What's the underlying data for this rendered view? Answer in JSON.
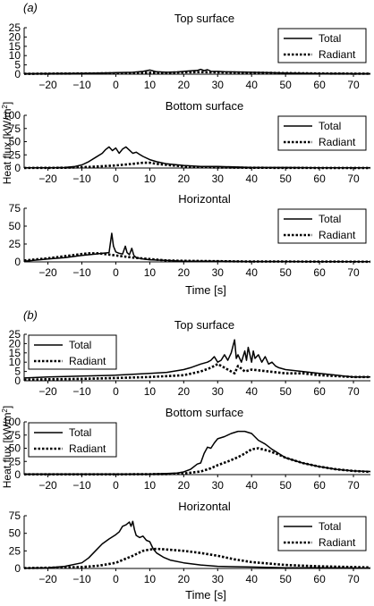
{
  "figure": {
    "panels": [
      {
        "label": "(a)",
        "ylabel": "Heat flux [kW/m",
        "ylabel_sup": "2",
        "ylabel_close": "]",
        "xlabel": "Time [s]"
      },
      {
        "label": "(b)",
        "ylabel": "Heat flux [kW/m",
        "ylabel_sup": "2",
        "ylabel_close": "]",
        "xlabel": "Time [s]"
      }
    ]
  },
  "chart_data": [
    {
      "type": "line",
      "panel": "(a)",
      "title": "Top surface",
      "xlim": [
        -27,
        75
      ],
      "ylim": [
        0,
        25
      ],
      "xticks": [
        -20,
        -10,
        0,
        10,
        20,
        30,
        40,
        50,
        60,
        70
      ],
      "yticks": [
        0,
        5,
        10,
        15,
        20,
        25
      ],
      "grid": false,
      "legend": "top-right",
      "series": [
        {
          "name": "Total",
          "style": "solid",
          "x": [
            -27,
            -20,
            -10,
            -5,
            0,
            5,
            8,
            10,
            12,
            15,
            18,
            20,
            22,
            24,
            25,
            26,
            27,
            28,
            30,
            32,
            35,
            40,
            45,
            50,
            55,
            60,
            65,
            70,
            75
          ],
          "y": [
            0.3,
            0.4,
            0.5,
            0.6,
            0.8,
            1.0,
            1.5,
            2.2,
            1.3,
            1.0,
            1.2,
            1.5,
            1.8,
            2.0,
            2.6,
            1.9,
            2.4,
            1.6,
            1.5,
            1.3,
            1.2,
            1.0,
            0.8,
            0.6,
            0.5,
            0.4,
            0.4,
            0.3,
            0.3
          ]
        },
        {
          "name": "Radiant",
          "style": "dotted",
          "x": [
            -27,
            -20,
            -10,
            0,
            5,
            10,
            15,
            20,
            25,
            30,
            35,
            40,
            50,
            60,
            70,
            75
          ],
          "y": [
            0.2,
            0.3,
            0.4,
            0.5,
            0.6,
            0.8,
            0.8,
            1.0,
            1.1,
            1.0,
            0.9,
            0.8,
            0.6,
            0.4,
            0.3,
            0.3
          ]
        }
      ]
    },
    {
      "type": "line",
      "panel": "(a)",
      "title": "Bottom surface",
      "xlim": [
        -27,
        75
      ],
      "ylim": [
        0,
        100
      ],
      "xticks": [
        -20,
        -10,
        0,
        10,
        20,
        30,
        40,
        50,
        60,
        70
      ],
      "yticks": [
        0,
        25,
        50,
        75,
        100
      ],
      "grid": false,
      "legend": "top-right",
      "series": [
        {
          "name": "Total",
          "style": "solid",
          "x": [
            -27,
            -20,
            -15,
            -12,
            -10,
            -8,
            -6,
            -4,
            -3,
            -2,
            -1,
            0,
            1,
            2,
            3,
            4,
            5,
            6,
            7,
            8,
            10,
            12,
            15,
            20,
            25,
            30,
            35,
            40,
            50,
            60,
            70,
            75
          ],
          "y": [
            0.5,
            0.5,
            1,
            3,
            6,
            12,
            20,
            28,
            35,
            40,
            33,
            38,
            28,
            36,
            40,
            34,
            28,
            30,
            26,
            22,
            16,
            12,
            8,
            5,
            3,
            3,
            2,
            1,
            1,
            0.5,
            0.5,
            0.5
          ]
        },
        {
          "name": "Radiant",
          "style": "dotted",
          "x": [
            -27,
            -20,
            -15,
            -10,
            -5,
            0,
            5,
            8,
            10,
            12,
            15,
            20,
            25,
            30,
            40,
            50,
            60,
            75
          ],
          "y": [
            0.2,
            0.3,
            0.5,
            1.5,
            3,
            5,
            8,
            10,
            10,
            8,
            6,
            3,
            1.5,
            1,
            0.5,
            0.3,
            0.2,
            0.2
          ]
        }
      ]
    },
    {
      "type": "line",
      "panel": "(a)",
      "title": "Horizontal",
      "xlim": [
        -27,
        75
      ],
      "ylim": [
        0,
        75
      ],
      "xticks": [
        -20,
        -10,
        0,
        10,
        20,
        30,
        40,
        50,
        60,
        70
      ],
      "yticks": [
        0,
        25,
        50,
        75
      ],
      "grid": false,
      "legend": "top-right",
      "series": [
        {
          "name": "Total",
          "style": "solid",
          "x": [
            -27,
            -20,
            -15,
            -10,
            -6,
            -4,
            -2,
            -1.2,
            -0.7,
            0,
            1,
            2,
            2.8,
            3.3,
            4,
            4.7,
            5.3,
            6,
            8,
            10,
            15,
            20,
            30,
            40,
            50,
            60,
            75
          ],
          "y": [
            1,
            4,
            6,
            9,
            11,
            12,
            13,
            40,
            22,
            14,
            12,
            11,
            22,
            13,
            10,
            19,
            9,
            6,
            4,
            3,
            2,
            1,
            1,
            0.5,
            0.5,
            0.3,
            0.3
          ]
        },
        {
          "name": "Radiant",
          "style": "dotted",
          "x": [
            -27,
            -20,
            -15,
            -10,
            -8,
            -5,
            0,
            5,
            10,
            15,
            20,
            30,
            40,
            50,
            75
          ],
          "y": [
            2,
            5,
            8,
            11,
            12,
            12,
            9,
            6,
            4,
            2,
            1.5,
            1,
            0.5,
            0.5,
            0.3
          ]
        }
      ]
    },
    {
      "type": "line",
      "panel": "(b)",
      "title": "Top surface",
      "xlim": [
        -27,
        75
      ],
      "ylim": [
        0,
        25
      ],
      "xticks": [
        -20,
        -10,
        0,
        10,
        20,
        30,
        40,
        50,
        60,
        70
      ],
      "yticks": [
        0,
        5,
        10,
        15,
        20,
        25
      ],
      "grid": false,
      "legend": "top-left",
      "series": [
        {
          "name": "Total",
          "style": "solid",
          "x": [
            -27,
            -20,
            -10,
            0,
            5,
            10,
            15,
            20,
            22,
            25,
            27,
            28,
            29,
            30,
            31,
            32,
            33,
            34,
            35,
            35.5,
            36,
            37,
            38,
            38.5,
            39,
            40,
            40.5,
            41,
            42,
            43,
            44,
            45,
            46,
            47,
            48,
            50,
            55,
            60,
            65,
            70,
            75
          ],
          "y": [
            1.5,
            2,
            2.5,
            3,
            3.5,
            4,
            4.5,
            6,
            7,
            9,
            10,
            11,
            13,
            10,
            11,
            14,
            11,
            15,
            22,
            12,
            14,
            10,
            16,
            11,
            18,
            10,
            16,
            12,
            14,
            10,
            13,
            9,
            10,
            8,
            7,
            6,
            5,
            4,
            3,
            2,
            2
          ]
        },
        {
          "name": "Radiant",
          "style": "dotted",
          "x": [
            -27,
            -20,
            -10,
            0,
            10,
            20,
            25,
            28,
            30,
            32,
            34,
            35,
            36,
            38,
            40,
            45,
            50,
            55,
            60,
            70,
            75
          ],
          "y": [
            0.5,
            0.8,
            1,
            1.5,
            2,
            3,
            5,
            7,
            9,
            7,
            5,
            4,
            8,
            5,
            6,
            5,
            4,
            4,
            3,
            2,
            2
          ]
        }
      ]
    },
    {
      "type": "line",
      "panel": "(b)",
      "title": "Bottom surface",
      "xlim": [
        -27,
        75
      ],
      "ylim": [
        0,
        100
      ],
      "xticks": [
        -20,
        -10,
        0,
        10,
        20,
        30,
        40,
        50,
        60,
        70
      ],
      "yticks": [
        0,
        25,
        50,
        75,
        100
      ],
      "grid": false,
      "legend": "top-left",
      "series": [
        {
          "name": "Total",
          "style": "solid",
          "x": [
            -27,
            -10,
            0,
            10,
            15,
            18,
            20,
            22,
            24,
            25,
            26,
            27,
            28,
            29,
            30,
            32,
            34,
            36,
            38,
            40,
            42,
            44,
            46,
            48,
            50,
            55,
            60,
            65,
            70,
            75
          ],
          "y": [
            1,
            1,
            1,
            1,
            2,
            3,
            5,
            10,
            20,
            22,
            40,
            52,
            50,
            60,
            68,
            72,
            78,
            82,
            82,
            78,
            65,
            58,
            48,
            40,
            32,
            22,
            15,
            10,
            7,
            6
          ]
        },
        {
          "name": "Radiant",
          "style": "dotted",
          "x": [
            -27,
            0,
            15,
            20,
            25,
            28,
            30,
            33,
            36,
            38,
            40,
            42,
            45,
            48,
            50,
            55,
            60,
            65,
            70,
            75
          ],
          "y": [
            0.5,
            0.5,
            1,
            2,
            6,
            12,
            18,
            25,
            33,
            40,
            48,
            50,
            45,
            38,
            32,
            22,
            15,
            10,
            7,
            5
          ]
        }
      ]
    },
    {
      "type": "line",
      "panel": "(b)",
      "title": "Horizontal",
      "xlim": [
        -27,
        75
      ],
      "ylim": [
        0,
        75
      ],
      "xticks": [
        -20,
        -10,
        0,
        10,
        20,
        30,
        40,
        50,
        60,
        70
      ],
      "yticks": [
        0,
        25,
        50,
        75
      ],
      "grid": false,
      "legend": "top-right",
      "series": [
        {
          "name": "Total",
          "style": "solid",
          "x": [
            -27,
            -20,
            -15,
            -10,
            -8,
            -6,
            -4,
            -2,
            0,
            1,
            2,
            3,
            4,
            4.5,
            5,
            5.5,
            6,
            7,
            8,
            9,
            10,
            11,
            12,
            14,
            16,
            20,
            25,
            30,
            40,
            50,
            60,
            75
          ],
          "y": [
            0.5,
            1,
            3,
            8,
            15,
            25,
            35,
            42,
            48,
            52,
            60,
            62,
            66,
            60,
            67,
            55,
            47,
            44,
            46,
            40,
            38,
            28,
            22,
            16,
            12,
            8,
            5,
            3,
            2,
            1,
            1,
            0.5
          ]
        },
        {
          "name": "Radiant",
          "style": "dotted",
          "x": [
            -27,
            -20,
            -10,
            -5,
            0,
            5,
            8,
            10,
            12,
            15,
            20,
            25,
            30,
            35,
            40,
            50,
            60,
            70,
            75
          ],
          "y": [
            0.5,
            1,
            2,
            4,
            8,
            18,
            25,
            27,
            28,
            27,
            25,
            22,
            18,
            13,
            9,
            5,
            3,
            2,
            1.5
          ]
        }
      ]
    }
  ]
}
